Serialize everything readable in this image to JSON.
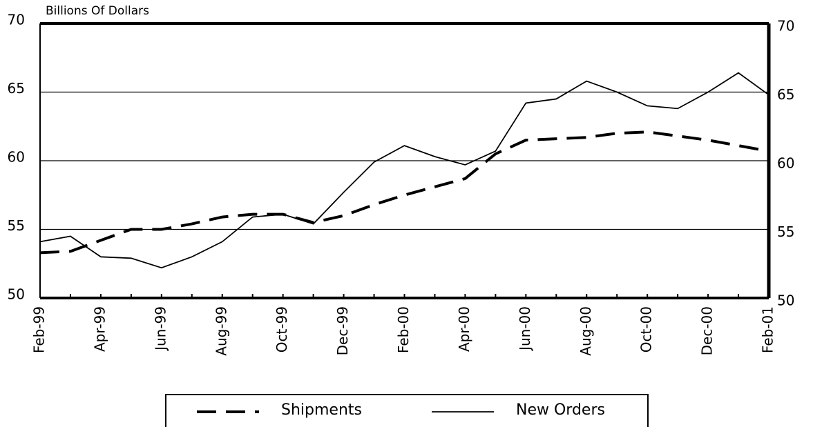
{
  "chart_data": {
    "type": "line",
    "y_label": "Billions Of Dollars",
    "categories": [
      "Feb-99",
      null,
      "Apr-99",
      null,
      "Jun-99",
      null,
      "Aug-99",
      null,
      "Oct-99",
      null,
      "Dec-99",
      null,
      "Feb-00",
      null,
      "Apr-00",
      null,
      "Jun-00",
      null,
      "Aug-00",
      null,
      "Oct-00",
      null,
      "Dec-00",
      null,
      "Feb-01"
    ],
    "series": [
      {
        "name": "Shipments",
        "color": "#000000",
        "dashed": true,
        "values": [
          53.3,
          53.4,
          54.2,
          55.0,
          55.0,
          55.4,
          55.9,
          56.1,
          56.1,
          55.5,
          56.0,
          56.8,
          57.5,
          58.1,
          58.7,
          60.5,
          61.5,
          61.6,
          61.7,
          62.0,
          62.1,
          61.8,
          61.5,
          61.1,
          60.7
        ]
      },
      {
        "name": "New Orders",
        "color": "#000000",
        "dashed": false,
        "values": [
          54.1,
          54.5,
          53.0,
          52.9,
          52.2,
          53.0,
          54.1,
          55.9,
          56.1,
          55.4,
          57.7,
          59.9,
          61.1,
          60.3,
          59.7,
          60.7,
          64.2,
          64.5,
          65.8,
          65.0,
          64.0,
          63.8,
          65.0,
          66.4,
          64.8
        ]
      }
    ],
    "ylim": [
      50,
      70
    ],
    "yticks": [
      50,
      55,
      60,
      65,
      70
    ],
    "y2lim": [
      50,
      70
    ],
    "y2ticks": [
      50,
      55,
      60,
      65,
      70
    ],
    "grid": true,
    "legend": "bottom"
  }
}
